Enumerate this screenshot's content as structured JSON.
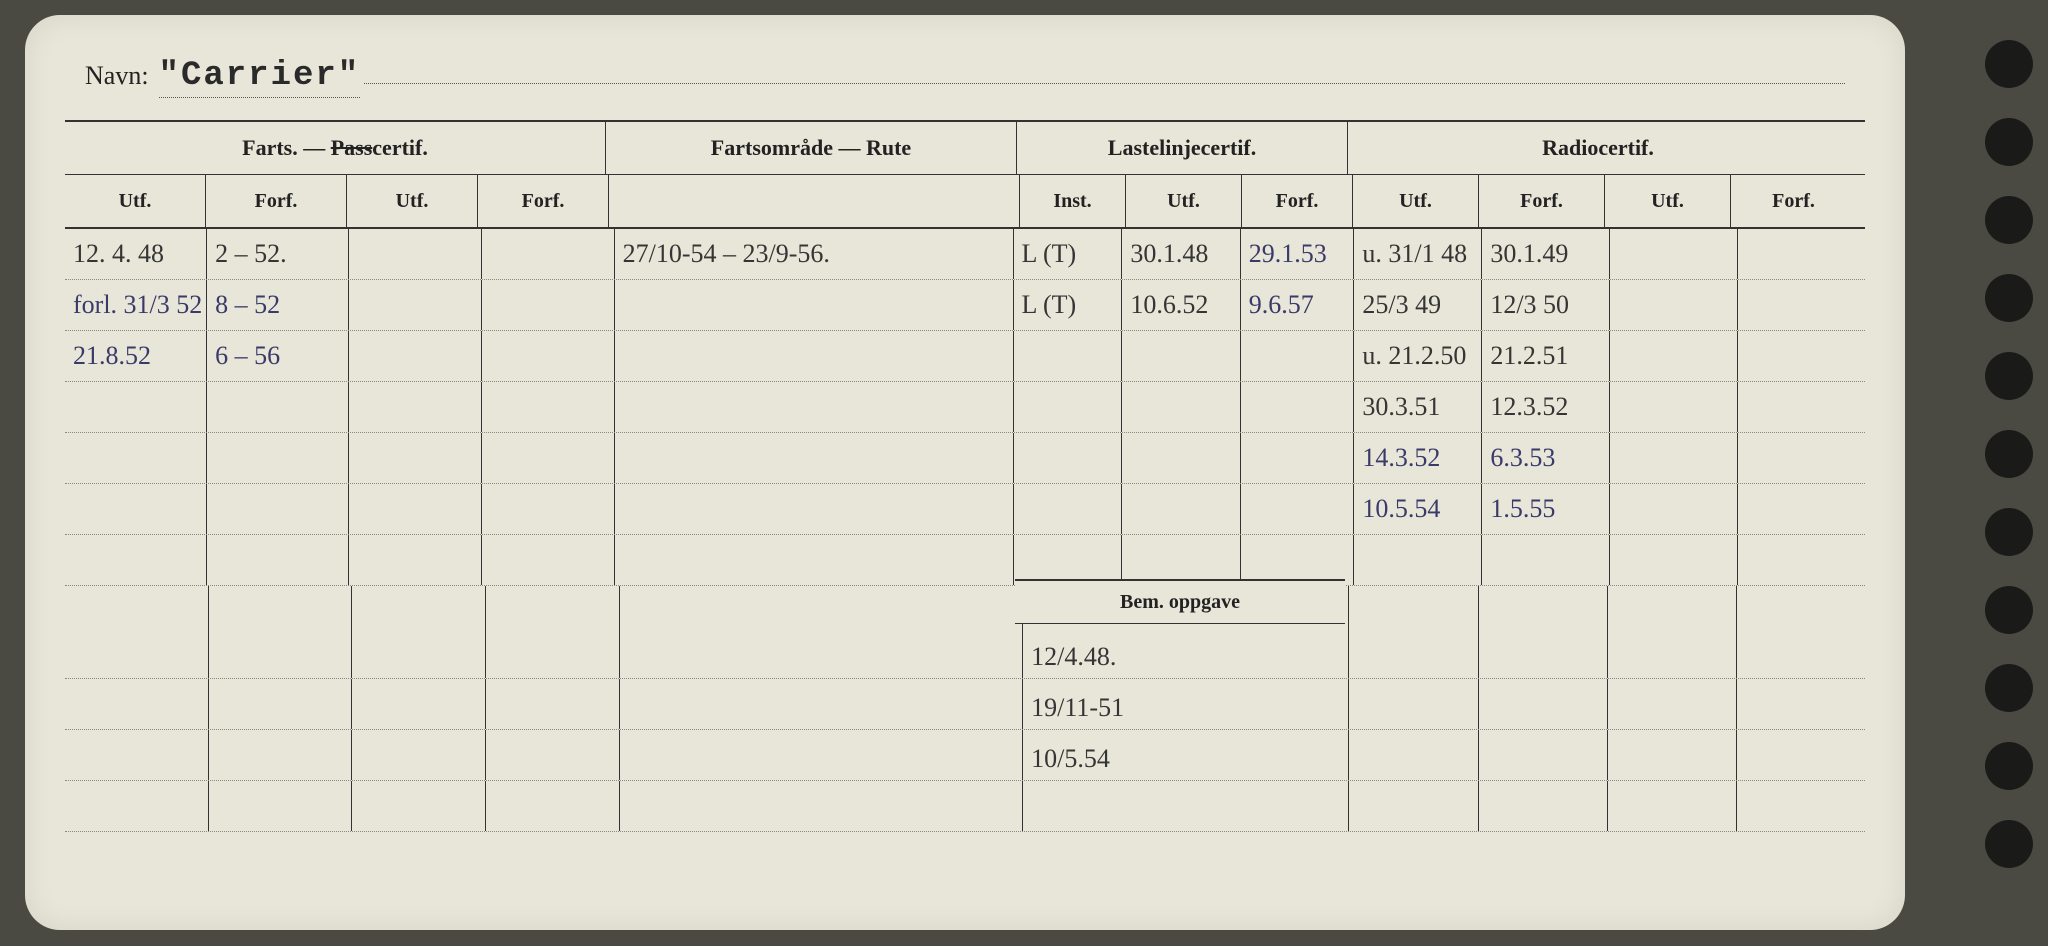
{
  "navn_label": "Navn:",
  "navn_value": "\"Carrier\"",
  "sections": {
    "farts": "Farts. — Passcertif.",
    "rute": "Fartsområde — Rute",
    "laste": "Lastelinjecertif.",
    "radio": "Radiocertif."
  },
  "sub": {
    "utf": "Utf.",
    "forf": "Forf.",
    "inst": "Inst."
  },
  "bem_label": "Bem. oppgave",
  "rows": [
    {
      "f_utf": "12. 4. 48",
      "f_forf": "2 – 52.",
      "rute": "27/10-54 – 23/9-56.",
      "l_inst": "L (T)",
      "l_utf": "30.1.48",
      "l_forf": "29.1.53",
      "r_utf": "u. 31/1 48",
      "r_forf": "30.1.49"
    },
    {
      "f_utf": "forl. 31/3 52",
      "f_forf": "8 – 52",
      "rute": "",
      "l_inst": "L (T)",
      "l_utf": "10.6.52",
      "l_forf": "9.6.57",
      "r_utf": "25/3 49",
      "r_forf": "12/3 50"
    },
    {
      "f_utf": "21.8.52",
      "f_forf": "6 – 56",
      "rute": "",
      "l_inst": "",
      "l_utf": "",
      "l_forf": "",
      "r_utf": "u. 21.2.50",
      "r_forf": "21.2.51"
    },
    {
      "f_utf": "",
      "f_forf": "",
      "rute": "",
      "l_inst": "",
      "l_utf": "",
      "l_forf": "",
      "r_utf": "30.3.51",
      "r_forf": "12.3.52"
    },
    {
      "f_utf": "",
      "f_forf": "",
      "rute": "",
      "l_inst": "",
      "l_utf": "",
      "l_forf": "",
      "r_utf": "14.3.52",
      "r_forf": "6.3.53"
    },
    {
      "f_utf": "",
      "f_forf": "",
      "rute": "",
      "l_inst": "",
      "l_utf": "",
      "l_forf": "",
      "r_utf": "10.5.54",
      "r_forf": "1.5.55"
    },
    {
      "f_utf": "",
      "f_forf": "",
      "rute": "",
      "l_inst": "",
      "l_utf": "",
      "l_forf": "",
      "r_utf": "",
      "r_forf": ""
    }
  ],
  "bem_rows": [
    "12/4.48.",
    "19/11-51",
    "10/5.54",
    ""
  ],
  "colors": {
    "card_bg": "#e8e6d8",
    "ink_blue": "#3a3a6a",
    "ink_black": "#353535",
    "rule": "#333333"
  }
}
